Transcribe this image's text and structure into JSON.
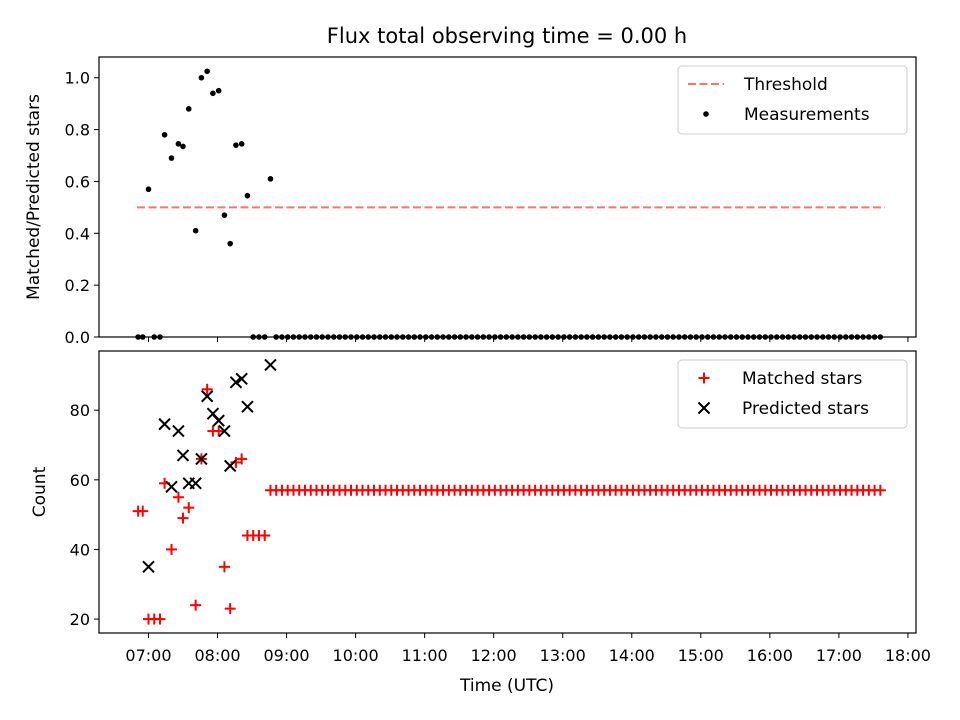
{
  "figure": {
    "title": "Flux total observing time = 0.00 h",
    "xlabel": "Time (UTC)"
  },
  "chart_data": [
    {
      "type": "scatter",
      "id": "ratio",
      "ylabel": "Matched/Predicted stars",
      "xlim": [
        "06:17",
        "18:07"
      ],
      "ylim": [
        0,
        1.08
      ],
      "y_ticks": [
        "0.0",
        "0.2",
        "0.4",
        "0.6",
        "0.8",
        "1.0"
      ],
      "x_ticks": [
        "07:00",
        "08:00",
        "09:00",
        "10:00",
        "11:00",
        "12:00",
        "13:00",
        "14:00",
        "15:00",
        "16:00",
        "17:00",
        "18:00"
      ],
      "legend": {
        "position": "top-right",
        "entries": [
          "Threshold",
          "Measurements"
        ]
      },
      "threshold": {
        "name": "Threshold",
        "value": 0.5,
        "x_range": [
          "06:50",
          "17:40"
        ],
        "color": "#ff7070"
      },
      "series": [
        {
          "name": "Measurements",
          "color": "#000000",
          "marker": "dot",
          "points": [
            [
              "06:51",
              0
            ],
            [
              "06:55",
              0
            ],
            [
              "07:00",
              0.57
            ],
            [
              "07:05",
              0
            ],
            [
              "07:10",
              0
            ],
            [
              "07:14",
              0.78
            ],
            [
              "07:20",
              0.69
            ],
            [
              "07:26",
              0.745
            ],
            [
              "07:30",
              0.735
            ],
            [
              "07:35",
              0.88
            ],
            [
              "07:41",
              0.41
            ],
            [
              "07:46",
              1.0
            ],
            [
              "07:51",
              1.025
            ],
            [
              "07:56",
              0.94
            ],
            [
              "08:01",
              0.95
            ],
            [
              "08:06",
              0.47
            ],
            [
              "08:11",
              0.36
            ],
            [
              "08:16",
              0.74
            ],
            [
              "08:21",
              0.745
            ],
            [
              "08:26",
              0.545
            ],
            [
              "08:31",
              0
            ],
            [
              "08:36",
              0
            ],
            [
              "08:41",
              0
            ],
            [
              "08:46",
              0.61
            ],
            [
              "08:51",
              0
            ]
          ],
          "zero_run": {
            "start": "08:56",
            "end": "17:36",
            "step_minutes": 5,
            "value": 0
          }
        }
      ]
    },
    {
      "type": "scatter",
      "id": "counts",
      "ylabel": "Count",
      "xlim": [
        "06:17",
        "18:07"
      ],
      "ylim": [
        16,
        97
      ],
      "y_ticks": [
        "20",
        "40",
        "60",
        "80"
      ],
      "x_ticks": [
        "07:00",
        "08:00",
        "09:00",
        "10:00",
        "11:00",
        "12:00",
        "13:00",
        "14:00",
        "15:00",
        "16:00",
        "17:00",
        "18:00"
      ],
      "legend": {
        "position": "top-right",
        "entries": [
          "Matched stars",
          "Predicted stars"
        ]
      },
      "series": [
        {
          "name": "Matched stars",
          "color": "#ff0000",
          "marker": "plus",
          "points": [
            [
              "06:51",
              51
            ],
            [
              "06:55",
              51
            ],
            [
              "07:00",
              20
            ],
            [
              "07:05",
              20
            ],
            [
              "07:10",
              20
            ],
            [
              "07:14",
              59
            ],
            [
              "07:20",
              40
            ],
            [
              "07:26",
              55
            ],
            [
              "07:30",
              49
            ],
            [
              "07:35",
              52
            ],
            [
              "07:41",
              24
            ],
            [
              "07:46",
              66
            ],
            [
              "07:51",
              86
            ],
            [
              "07:56",
              74
            ],
            [
              "08:01",
              74
            ],
            [
              "08:06",
              35
            ],
            [
              "08:11",
              23
            ],
            [
              "08:16",
              65
            ],
            [
              "08:21",
              66
            ],
            [
              "08:26",
              44
            ],
            [
              "08:31",
              44
            ],
            [
              "08:36",
              44
            ],
            [
              "08:41",
              44
            ],
            [
              "08:46",
              57
            ],
            [
              "08:51",
              57
            ]
          ],
          "const_run": {
            "start": "08:56",
            "end": "17:36",
            "step_minutes": 5,
            "value": 57
          }
        },
        {
          "name": "Predicted stars",
          "color": "#000000",
          "marker": "x",
          "points": [
            [
              "07:00",
              35
            ],
            [
              "07:14",
              76
            ],
            [
              "07:20",
              58
            ],
            [
              "07:26",
              74
            ],
            [
              "07:30",
              67
            ],
            [
              "07:35",
              59
            ],
            [
              "07:41",
              59
            ],
            [
              "07:46",
              66
            ],
            [
              "07:51",
              84
            ],
            [
              "07:56",
              79
            ],
            [
              "08:01",
              77
            ],
            [
              "08:06",
              74
            ],
            [
              "08:11",
              64
            ],
            [
              "08:16",
              88
            ],
            [
              "08:21",
              89
            ],
            [
              "08:26",
              81
            ],
            [
              "08:46",
              93
            ]
          ]
        }
      ]
    }
  ]
}
